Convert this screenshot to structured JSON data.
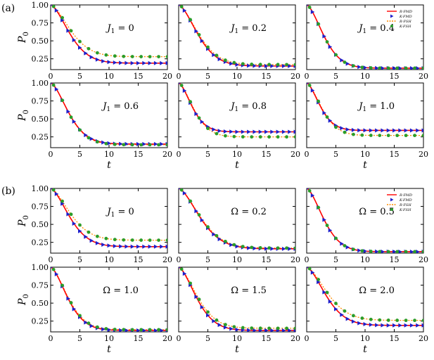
{
  "figure": {
    "group_labels": [
      "(a)",
      "(b)"
    ],
    "xlabel": "t",
    "ylabel_main": "P",
    "ylabel_sub": "0",
    "x_ticks": [
      "0",
      "5",
      "10",
      "15",
      "20"
    ],
    "y_ticks": [
      "0.25",
      "0.50",
      "0.75",
      "1.00"
    ],
    "legend": [
      "R-FMD",
      "K-FMD",
      "R-FSH",
      "K-FSH"
    ],
    "colors": {
      "r_fmd": "#ff0000",
      "k_fmd": "#1f1fcc",
      "r_fsh": "#ff8c00",
      "k_fsh": "#2a9d2a"
    }
  },
  "chart_data": [
    {
      "type": "line",
      "panel": "a1",
      "annotation": {
        "sym": "J",
        "sub": "1",
        "rest": " = 0"
      },
      "xlim": [
        0,
        20
      ],
      "ylim": [
        0.1,
        1.0
      ],
      "fmd_inf": 0.19,
      "fsh_inf": 0.28,
      "fmd_tau": 4.2,
      "fsh_tau": 4.4,
      "series": [
        {
          "name": "R-FMD"
        },
        {
          "name": "K-FMD"
        },
        {
          "name": "R-FSH"
        },
        {
          "name": "K-FSH"
        }
      ],
      "legend": false
    },
    {
      "type": "line",
      "panel": "a2",
      "annotation": {
        "sym": "J",
        "sub": "1",
        "rest": " = 0.2"
      },
      "xlim": [
        0,
        20
      ],
      "ylim": [
        0.1,
        1.0
      ],
      "fmd_inf": 0.15,
      "fsh_inf": 0.17,
      "fmd_tau": 4.3,
      "fsh_tau": 4.4,
      "series": [
        {
          "name": "R-FMD"
        },
        {
          "name": "K-FMD"
        },
        {
          "name": "R-FSH"
        },
        {
          "name": "K-FSH"
        }
      ],
      "legend": false
    },
    {
      "type": "line",
      "panel": "a3",
      "annotation": {
        "sym": "J",
        "sub": "1",
        "rest": " = 0.4"
      },
      "xlim": [
        0,
        20
      ],
      "ylim": [
        0.1,
        1.0
      ],
      "fmd_inf": 0.12,
      "fsh_inf": 0.12,
      "fmd_tau": 3.8,
      "fsh_tau": 3.8,
      "series": [
        {
          "name": "R-FMD"
        },
        {
          "name": "K-FMD"
        },
        {
          "name": "R-FSH"
        },
        {
          "name": "K-FSH"
        }
      ],
      "legend": true
    },
    {
      "type": "line",
      "panel": "a4",
      "annotation": {
        "sym": "J",
        "sub": "1",
        "rest": " = 0.6"
      },
      "xlim": [
        0,
        20
      ],
      "ylim": [
        0.1,
        1.0
      ],
      "fmd_inf": 0.15,
      "fsh_inf": 0.14,
      "fmd_tau": 4.0,
      "fsh_tau": 4.0,
      "series": [
        {
          "name": "R-FMD"
        },
        {
          "name": "K-FMD"
        },
        {
          "name": "R-FSH"
        },
        {
          "name": "K-FSH"
        }
      ],
      "legend": false
    },
    {
      "type": "line",
      "panel": "a5",
      "annotation": {
        "sym": "J",
        "sub": "1",
        "rest": " = 0.8"
      },
      "xlim": [
        0,
        20
      ],
      "ylim": [
        0.1,
        1.0
      ],
      "fmd_inf": 0.32,
      "fsh_inf": 0.25,
      "fmd_tau": 3.0,
      "fsh_tau": 3.4,
      "series": [
        {
          "name": "R-FMD"
        },
        {
          "name": "K-FMD"
        },
        {
          "name": "R-FSH"
        },
        {
          "name": "K-FSH"
        }
      ],
      "legend": false
    },
    {
      "type": "line",
      "panel": "a6",
      "annotation": {
        "sym": "J",
        "sub": "1",
        "rest": " = 1.0"
      },
      "xlim": [
        0,
        20
      ],
      "ylim": [
        0.1,
        1.0
      ],
      "fmd_inf": 0.34,
      "fsh_inf": 0.27,
      "fmd_tau": 3.0,
      "fsh_tau": 3.4,
      "series": [
        {
          "name": "R-FMD"
        },
        {
          "name": "K-FMD"
        },
        {
          "name": "R-FSH"
        },
        {
          "name": "K-FSH"
        }
      ],
      "legend": false
    },
    {
      "type": "line",
      "panel": "b1",
      "annotation": {
        "sym": "J",
        "sub": "1",
        "rest": " = 0"
      },
      "xlim": [
        0,
        20
      ],
      "ylim": [
        0.1,
        1.0
      ],
      "fmd_inf": 0.19,
      "fsh_inf": 0.28,
      "fmd_tau": 4.2,
      "fsh_tau": 4.4,
      "series": [
        {
          "name": "R-FMD"
        },
        {
          "name": "K-FMD"
        },
        {
          "name": "R-FSH"
        },
        {
          "name": "K-FSH"
        }
      ],
      "legend": false
    },
    {
      "type": "line",
      "panel": "b2",
      "annotation": {
        "sym": "Ω",
        "sub": "",
        "rest": " = 0.2"
      },
      "xlim": [
        0,
        20
      ],
      "ylim": [
        0.1,
        1.0
      ],
      "fmd_inf": 0.16,
      "fsh_inf": 0.17,
      "fmd_tau": 4.8,
      "fsh_tau": 4.9,
      "series": [
        {
          "name": "R-FMD"
        },
        {
          "name": "K-FMD"
        },
        {
          "name": "R-FSH"
        },
        {
          "name": "K-FSH"
        }
      ],
      "legend": false
    },
    {
      "type": "line",
      "panel": "b3",
      "annotation": {
        "sym": "Ω",
        "sub": "",
        "rest": " = 0.5"
      },
      "xlim": [
        0,
        20
      ],
      "ylim": [
        0.1,
        1.0
      ],
      "fmd_inf": 0.12,
      "fsh_inf": 0.12,
      "fmd_tau": 3.8,
      "fsh_tau": 3.8,
      "series": [
        {
          "name": "R-FMD"
        },
        {
          "name": "K-FMD"
        },
        {
          "name": "R-FSH"
        },
        {
          "name": "K-FSH"
        }
      ],
      "legend": true
    },
    {
      "type": "line",
      "panel": "b4",
      "annotation": {
        "sym": "Ω",
        "sub": "",
        "rest": " = 1.0"
      },
      "xlim": [
        0,
        20
      ],
      "ylim": [
        0.1,
        1.0
      ],
      "fmd_inf": 0.12,
      "fsh_inf": 0.13,
      "fmd_tau": 3.8,
      "fsh_tau": 3.9,
      "series": [
        {
          "name": "R-FMD"
        },
        {
          "name": "K-FMD"
        },
        {
          "name": "R-FSH"
        },
        {
          "name": "K-FSH"
        }
      ],
      "legend": false
    },
    {
      "type": "line",
      "panel": "b5",
      "annotation": {
        "sym": "Ω",
        "sub": "",
        "rest": " = 1.5"
      },
      "xlim": [
        0,
        20
      ],
      "ylim": [
        0.1,
        1.0
      ],
      "fmd_inf": 0.12,
      "fsh_inf": 0.15,
      "fmd_tau": 4.0,
      "fsh_tau": 4.2,
      "series": [
        {
          "name": "R-FMD"
        },
        {
          "name": "K-FMD"
        },
        {
          "name": "R-FSH"
        },
        {
          "name": "K-FSH"
        }
      ],
      "legend": false
    },
    {
      "type": "line",
      "panel": "b6",
      "annotation": {
        "sym": "Ω",
        "sub": "",
        "rest": " = 2.0"
      },
      "xlim": [
        0,
        20
      ],
      "ylim": [
        0.1,
        1.0
      ],
      "fmd_inf": 0.19,
      "fsh_inf": 0.26,
      "fmd_tau": 4.3,
      "fsh_tau": 4.6,
      "series": [
        {
          "name": "R-FMD"
        },
        {
          "name": "K-FMD"
        },
        {
          "name": "R-FSH"
        },
        {
          "name": "K-FSH"
        }
      ],
      "legend": false
    }
  ]
}
